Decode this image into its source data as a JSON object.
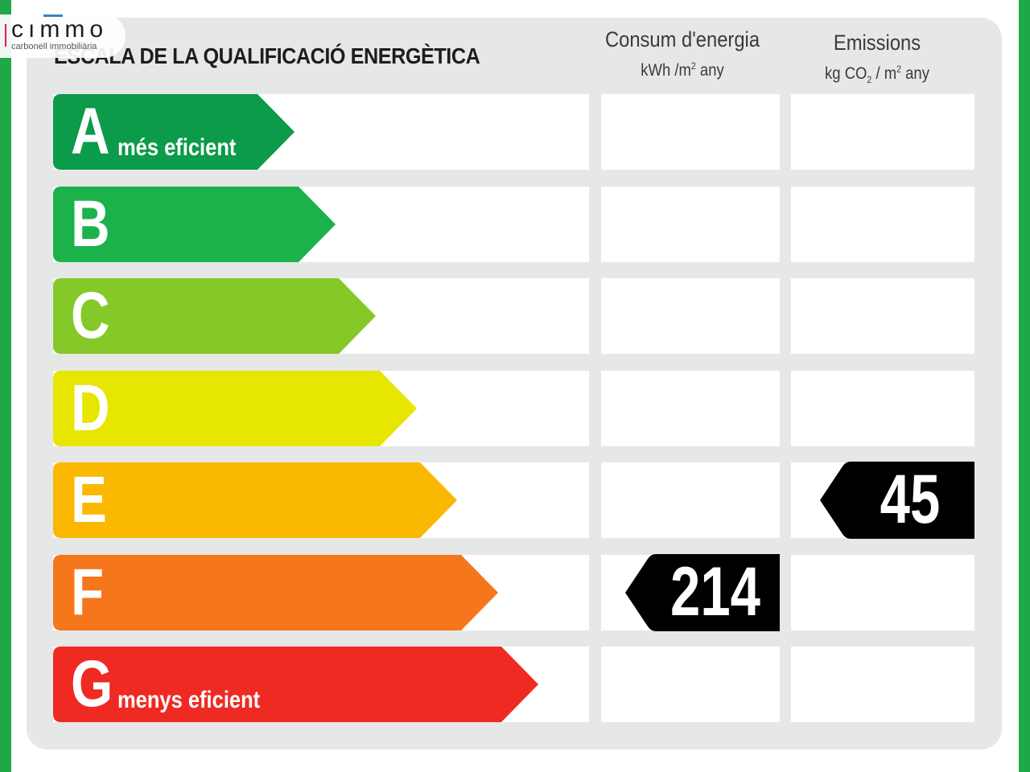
{
  "logo": {
    "name": "cımmo",
    "subtitle": "carbonell immobiliària"
  },
  "title": "ESCALA DE LA QUALIFICACIÓ ENERGÈTICA",
  "columns": {
    "consumption": {
      "title": "Consum d'energia",
      "unit_pre": "kWh /m",
      "unit_sup": "2",
      "unit_post": " any"
    },
    "emissions": {
      "title": "Emissions",
      "unit_pre": "kg CO",
      "unit_sub": "2",
      "unit_mid": " / m",
      "unit_sup": "2",
      "unit_post": " any"
    }
  },
  "bands": [
    {
      "letter": "A",
      "desc": "més eficient",
      "color": "#0c9a4b"
    },
    {
      "letter": "B",
      "desc": "",
      "color": "#1bb24b"
    },
    {
      "letter": "C",
      "desc": "",
      "color": "#84c928"
    },
    {
      "letter": "D",
      "desc": "",
      "color": "#e7e600"
    },
    {
      "letter": "E",
      "desc": "",
      "color": "#fbb800"
    },
    {
      "letter": "F",
      "desc": "",
      "color": "#f6761b"
    },
    {
      "letter": "G",
      "desc": "menys eficient",
      "color": "#ef2a23"
    }
  ],
  "ratings": {
    "consumption": {
      "value": "214",
      "band": "F"
    },
    "emissions": {
      "value": "45",
      "band": "E"
    }
  }
}
